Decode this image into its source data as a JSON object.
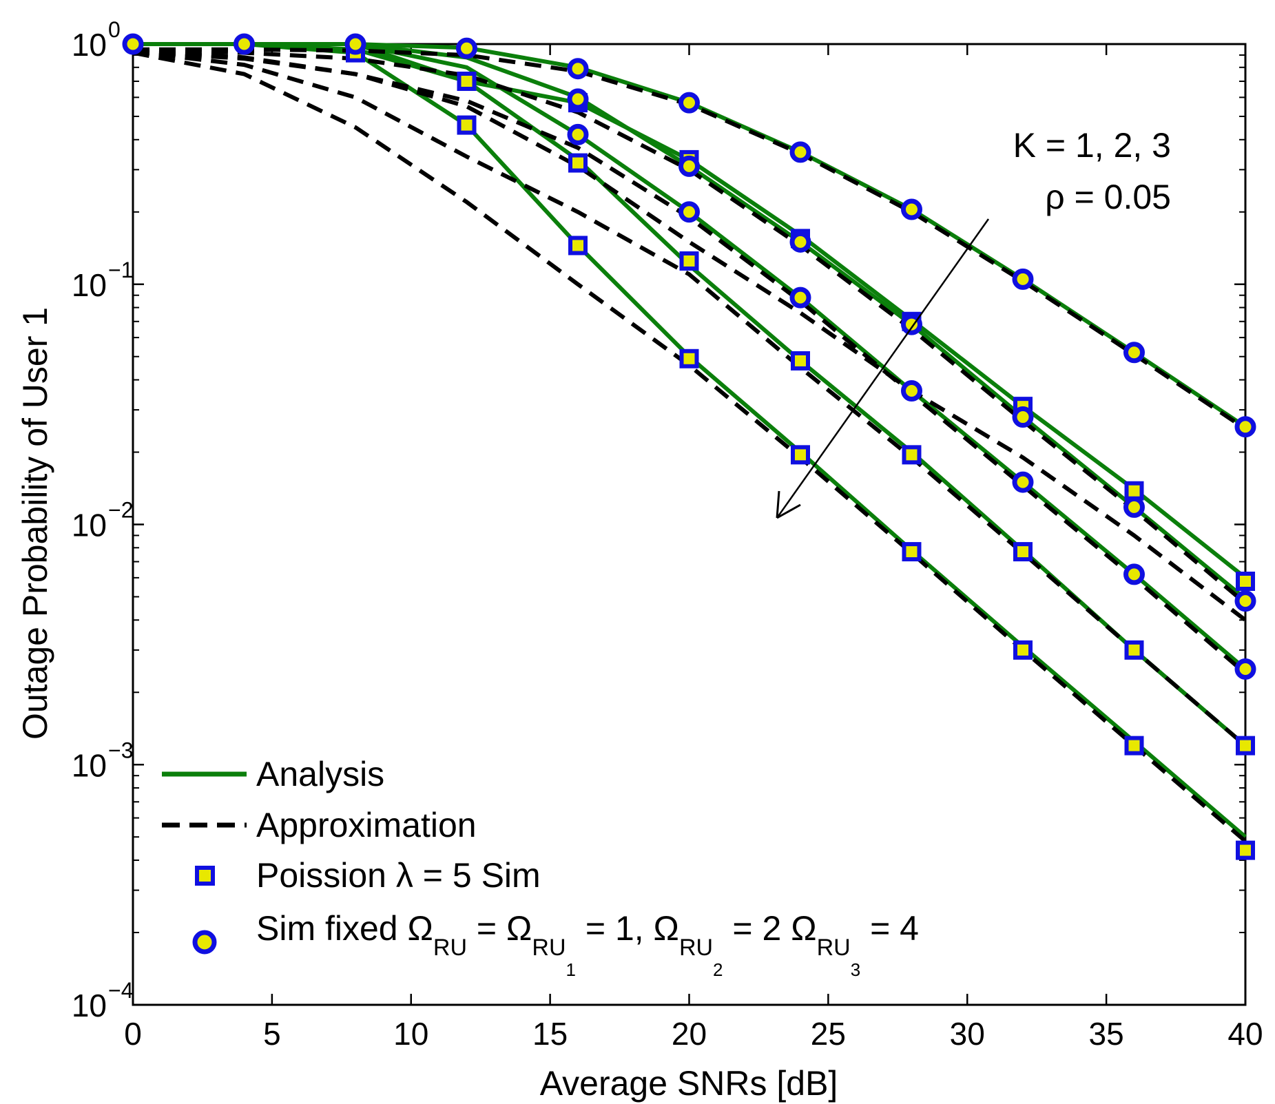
{
  "chart_data": {
    "type": "line",
    "title": "",
    "xlabel": "Average SNRs [dB]",
    "ylabel": "Outage Probability of User 1",
    "xlim": [
      0,
      40
    ],
    "ylim": [
      0.0001,
      1
    ],
    "yscale": "log",
    "grid": false,
    "x_ticks": [
      "0",
      "5",
      "10",
      "15",
      "20",
      "25",
      "30",
      "35",
      "40"
    ],
    "y_ticks": [
      {
        "base": "10",
        "exp": "0"
      },
      {
        "base": "10",
        "exp": "−1"
      },
      {
        "base": "10",
        "exp": "−2"
      },
      {
        "base": "10",
        "exp": "−3"
      },
      {
        "base": "10",
        "exp": "−4"
      }
    ],
    "colors": {
      "analysis": "#0b7f0b",
      "approximation": "#000000",
      "marker_edge": "#1010e0",
      "marker_fill": "#e8e800"
    },
    "legend": {
      "position": "bottom-left",
      "entries": [
        {
          "label": "Analysis"
        },
        {
          "label": "Approximation"
        },
        {
          "label_prefix": "Poission ",
          "label_symbol": "λ",
          "label_suffix": " = 5 Sim"
        },
        {
          "label_parts": [
            "Sim fixed ",
            "Ω",
            "RU",
            " = ",
            "Ω",
            "RU",
            "1",
            " = 1, ",
            "Ω",
            "RU",
            "2",
            " = 2 ",
            "Ω",
            "RU",
            "3",
            " = 4"
          ]
        }
      ]
    },
    "annotation": {
      "line1": "K = 1, 2, 3",
      "line2": "ρ = 0.05"
    },
    "series": [
      {
        "name": "Analysis fixed K=1",
        "style": "analysis",
        "x": [
          0,
          4,
          8,
          12,
          16,
          20,
          24,
          28,
          32,
          36,
          40
        ],
        "y": [
          1,
          1,
          1,
          0.965,
          0.8,
          0.57,
          0.355,
          0.205,
          0.105,
          0.052,
          0.0255
        ]
      },
      {
        "name": "Approximation fixed K=1",
        "style": "approximation",
        "x": [
          0,
          4,
          8,
          12,
          16,
          20,
          24,
          28,
          32,
          36,
          40
        ],
        "y": [
          0.95,
          0.95,
          0.94,
          0.9,
          0.77,
          0.56,
          0.35,
          0.2,
          0.103,
          0.051,
          0.025
        ]
      },
      {
        "name": "Analysis fixed K=2",
        "style": "analysis",
        "x": [
          0,
          4,
          8,
          12,
          16,
          20,
          24,
          28,
          32,
          36,
          40
        ],
        "y": [
          1,
          1,
          1,
          0.88,
          0.6,
          0.31,
          0.15,
          0.068,
          0.028,
          0.0118,
          0.0049
        ]
      },
      {
        "name": "Approximation fixed K=2",
        "style": "approximation",
        "x": [
          0,
          4,
          8,
          12,
          16,
          20,
          24,
          28,
          32,
          36,
          40
        ],
        "y": [
          0.95,
          0.92,
          0.87,
          0.74,
          0.52,
          0.3,
          0.145,
          0.065,
          0.027,
          0.0115,
          0.0047
        ]
      },
      {
        "name": "Analysis fixed K=3",
        "style": "analysis",
        "x": [
          0,
          4,
          8,
          12,
          16,
          20,
          24,
          28,
          32,
          36,
          40
        ],
        "y": [
          1,
          1,
          1,
          0.8,
          0.42,
          0.2,
          0.088,
          0.036,
          0.015,
          0.0062,
          0.0025
        ]
      },
      {
        "name": "Approximation fixed K=3",
        "style": "approximation",
        "x": [
          0,
          4,
          8,
          12,
          16,
          20,
          24,
          28,
          32,
          36,
          40
        ],
        "y": [
          0.94,
          0.88,
          0.75,
          0.58,
          0.37,
          0.19,
          0.085,
          0.035,
          0.0145,
          0.006,
          0.0024
        ]
      },
      {
        "name": "Analysis Poisson K=1",
        "style": "analysis",
        "x": [
          0,
          4,
          8,
          12,
          16,
          20,
          24,
          28,
          32,
          36,
          40
        ],
        "y": [
          1,
          1,
          1,
          0.7,
          0.57,
          0.33,
          0.16,
          0.071,
          0.031,
          0.014,
          0.006
        ]
      },
      {
        "name": "Approximation Poisson K=1",
        "style": "approximation",
        "x": [
          0,
          4,
          8,
          12,
          16,
          20,
          24,
          28,
          32,
          36,
          40
        ],
        "y": [
          0.93,
          0.87,
          0.75,
          0.55,
          0.31,
          0.15,
          0.076,
          0.036,
          0.019,
          0.009,
          0.004
        ]
      },
      {
        "name": "Analysis Poisson K=2",
        "style": "analysis",
        "x": [
          0,
          4,
          8,
          12,
          16,
          20,
          24,
          28,
          32,
          36,
          40
        ],
        "y": [
          1,
          1,
          0.92,
          0.46,
          0.145,
          0.05,
          0.02,
          0.0078,
          0.0031,
          0.00125,
          0.0005
        ]
      },
      {
        "name": "Approximation Poisson K=2",
        "style": "approximation",
        "x": [
          0,
          4,
          8,
          12,
          16,
          20,
          24,
          28,
          32,
          36,
          40
        ],
        "y": [
          0.92,
          0.75,
          0.45,
          0.22,
          0.1,
          0.046,
          0.019,
          0.0076,
          0.003,
          0.0012,
          0.00048
        ]
      },
      {
        "name": "Analysis Poisson K=3",
        "style": "analysis",
        "x": [
          0,
          4,
          8,
          12,
          16,
          20,
          24,
          28,
          32,
          36,
          40
        ],
        "y": [
          1,
          1,
          0.95,
          0.7,
          0.33,
          0.12,
          0.048,
          0.02,
          0.0078,
          0.003,
          0.0012
        ]
      },
      {
        "name": "Approximation Poisson K=3",
        "style": "approximation",
        "x": [
          0,
          4,
          8,
          12,
          16,
          20,
          24,
          28,
          32,
          36,
          40
        ],
        "y": [
          0.93,
          0.82,
          0.6,
          0.34,
          0.2,
          0.11,
          0.045,
          0.019,
          0.0076,
          0.003,
          0.0012
        ]
      },
      {
        "name": "Poission λ = 5 Sim",
        "style": "marker-square",
        "x": [
          8,
          12,
          12,
          16,
          16,
          16,
          20,
          20,
          20,
          24,
          24,
          24,
          28,
          28,
          28,
          32,
          32,
          32,
          36,
          36,
          36,
          40,
          40,
          40
        ],
        "y": [
          0.92,
          0.7,
          0.46,
          0.57,
          0.32,
          0.145,
          0.33,
          0.125,
          0.049,
          0.155,
          0.048,
          0.0195,
          0.07,
          0.0195,
          0.0077,
          0.031,
          0.0077,
          0.003,
          0.0138,
          0.003,
          0.0012,
          0.0058,
          0.0012,
          0.00044
        ]
      },
      {
        "name": "Sim fixed",
        "style": "marker-circle",
        "x": [
          0,
          4,
          8,
          12,
          16,
          20,
          24,
          28,
          32,
          36,
          40,
          16,
          20,
          24,
          28,
          32,
          36,
          40,
          16,
          20,
          24,
          28,
          32,
          36,
          40
        ],
        "y": [
          1,
          1,
          1,
          0.96,
          0.79,
          0.57,
          0.355,
          0.205,
          0.105,
          0.052,
          0.0255,
          0.59,
          0.31,
          0.15,
          0.068,
          0.028,
          0.0118,
          0.0048,
          0.42,
          0.2,
          0.088,
          0.036,
          0.015,
          0.0062,
          0.0025
        ]
      }
    ]
  }
}
